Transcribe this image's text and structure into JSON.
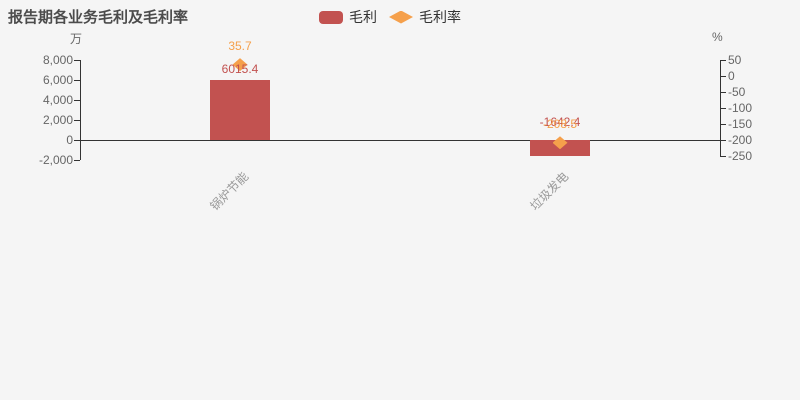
{
  "title": "报告期各业务毛利及毛利率",
  "legend": {
    "items": [
      {
        "label": "毛利",
        "marker": "rounded-rect",
        "color": "#c25250"
      },
      {
        "label": "毛利率",
        "marker": "diamond",
        "color": "#f5a04b"
      }
    ]
  },
  "colors": {
    "bar_red": "#c25250",
    "marker_orange": "#f5a04b",
    "title_text": "#4c4c4c",
    "axis_text": "#666666",
    "category_text": "#999999",
    "axis_line": "#333333",
    "background": "#f5f5f5"
  },
  "chart_data": {
    "type": "bar",
    "title": "报告期各业务毛利及毛利率",
    "categories": [
      "锅炉节能",
      "垃圾发电"
    ],
    "series": [
      {
        "name": "毛利",
        "type": "bar",
        "axis": "left",
        "unit": "万",
        "color": "#c25250",
        "values": [
          6015.4,
          -1642.4
        ],
        "labels": [
          "6015.4",
          "-1642.4"
        ]
      },
      {
        "name": "毛利率",
        "type": "scatter",
        "axis": "right",
        "unit": "%",
        "color": "#f5a04b",
        "values": [
          35.7,
          -208.5
        ],
        "labels": [
          "35.7",
          "-208.5"
        ]
      }
    ],
    "left_axis": {
      "name": "万",
      "min": -2000,
      "max": 8000,
      "tick_labels": [
        "8,000",
        "6,000",
        "4,000",
        "2,000",
        "0",
        "-2,000"
      ]
    },
    "right_axis": {
      "name": "%",
      "min": -250,
      "max": 50,
      "tick_labels": [
        "50",
        "0",
        "-50",
        "-100",
        "-150",
        "-200",
        "-250"
      ]
    },
    "grid": false,
    "legend_position": "top-center"
  }
}
